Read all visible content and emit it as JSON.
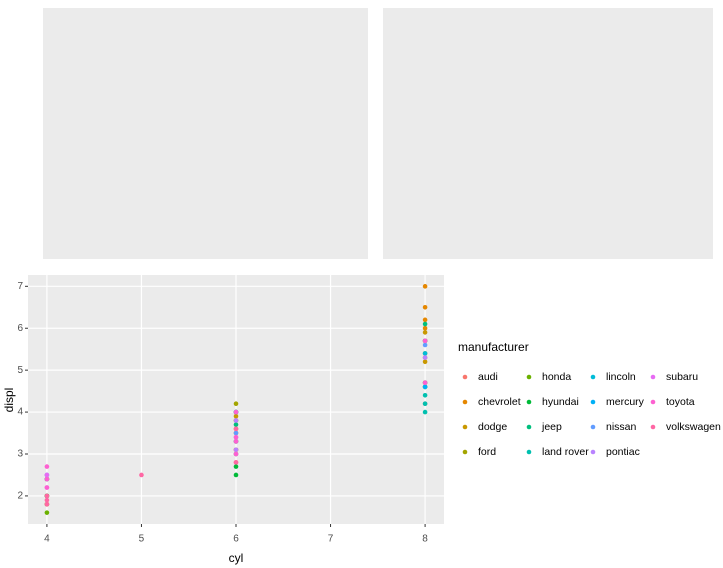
{
  "chart_data": {
    "type": "scatter",
    "x_label": "cyl",
    "y_label": "displ",
    "legend_title": "manufacturer",
    "xlim": [
      3.8,
      8.2
    ],
    "xticks": [
      4,
      5,
      6,
      7,
      8
    ],
    "ylim": [
      1.33,
      7.27
    ],
    "yticks": [
      2,
      3,
      4,
      5,
      6,
      7
    ],
    "grid": true,
    "legend": "right",
    "series": [
      {
        "name": "audi",
        "color": "#F8766D",
        "x": [
          4,
          4,
          6,
          6,
          8
        ],
        "values": [
          1.8,
          2.0,
          2.8,
          3.1,
          4.2
        ]
      },
      {
        "name": "chevrolet",
        "color": "#E58700",
        "x": [
          4,
          6,
          6,
          6,
          8,
          8,
          8,
          8,
          8,
          8
        ],
        "values": [
          2.4,
          3.1,
          3.5,
          3.6,
          5.3,
          5.7,
          6.0,
          6.2,
          6.5,
          7.0
        ]
      },
      {
        "name": "dodge",
        "color": "#C99800",
        "x": [
          4,
          6,
          6,
          6,
          6,
          6,
          8,
          8,
          8
        ],
        "values": [
          2.4,
          3.0,
          3.3,
          3.8,
          3.9,
          4.0,
          4.7,
          5.2,
          5.9
        ]
      },
      {
        "name": "ford",
        "color": "#A3A500",
        "x": [
          6,
          6,
          6,
          8,
          8
        ],
        "values": [
          3.8,
          4.0,
          4.2,
          4.6,
          5.4
        ]
      },
      {
        "name": "honda",
        "color": "#6BB100",
        "x": [
          4,
          4,
          4
        ],
        "values": [
          1.6,
          1.8,
          2.0
        ]
      },
      {
        "name": "hyundai",
        "color": "#00BA38",
        "x": [
          4,
          4,
          6,
          6,
          6
        ],
        "values": [
          2.0,
          2.4,
          2.5,
          2.7,
          3.3
        ]
      },
      {
        "name": "jeep",
        "color": "#00BF7D",
        "x": [
          6,
          6,
          8,
          8,
          8
        ],
        "values": [
          3.7,
          4.0,
          4.7,
          5.7,
          6.1
        ]
      },
      {
        "name": "land rover",
        "color": "#00C0AF",
        "x": [
          8,
          8,
          8,
          8
        ],
        "values": [
          4.0,
          4.2,
          4.4,
          4.6
        ]
      },
      {
        "name": "lincoln",
        "color": "#00BCD8",
        "x": [
          8
        ],
        "values": [
          5.4
        ]
      },
      {
        "name": "mercury",
        "color": "#00B0F6",
        "x": [
          6,
          8
        ],
        "values": [
          4.0,
          4.6
        ]
      },
      {
        "name": "nissan",
        "color": "#619CFF",
        "x": [
          4,
          4,
          6,
          6,
          6,
          8
        ],
        "values": [
          2.4,
          2.5,
          3.0,
          3.3,
          3.5,
          5.6
        ]
      },
      {
        "name": "pontiac",
        "color": "#B983FF",
        "x": [
          6,
          6,
          6,
          8
        ],
        "values": [
          3.1,
          3.4,
          3.8,
          5.3
        ]
      },
      {
        "name": "subaru",
        "color": "#E76BF3",
        "x": [
          4,
          4
        ],
        "values": [
          2.2,
          2.5
        ]
      },
      {
        "name": "toyota",
        "color": "#FD61D1",
        "x": [
          4,
          4,
          4,
          6,
          6,
          6,
          6,
          8,
          8
        ],
        "values": [
          2.2,
          2.4,
          2.7,
          3.0,
          3.3,
          3.4,
          4.0,
          4.7,
          5.7
        ]
      },
      {
        "name": "volkswagen",
        "color": "#FF67A4",
        "x": [
          4,
          4,
          4,
          5,
          6,
          6
        ],
        "values": [
          1.8,
          1.9,
          2.0,
          2.5,
          2.8,
          3.6
        ]
      }
    ]
  }
}
